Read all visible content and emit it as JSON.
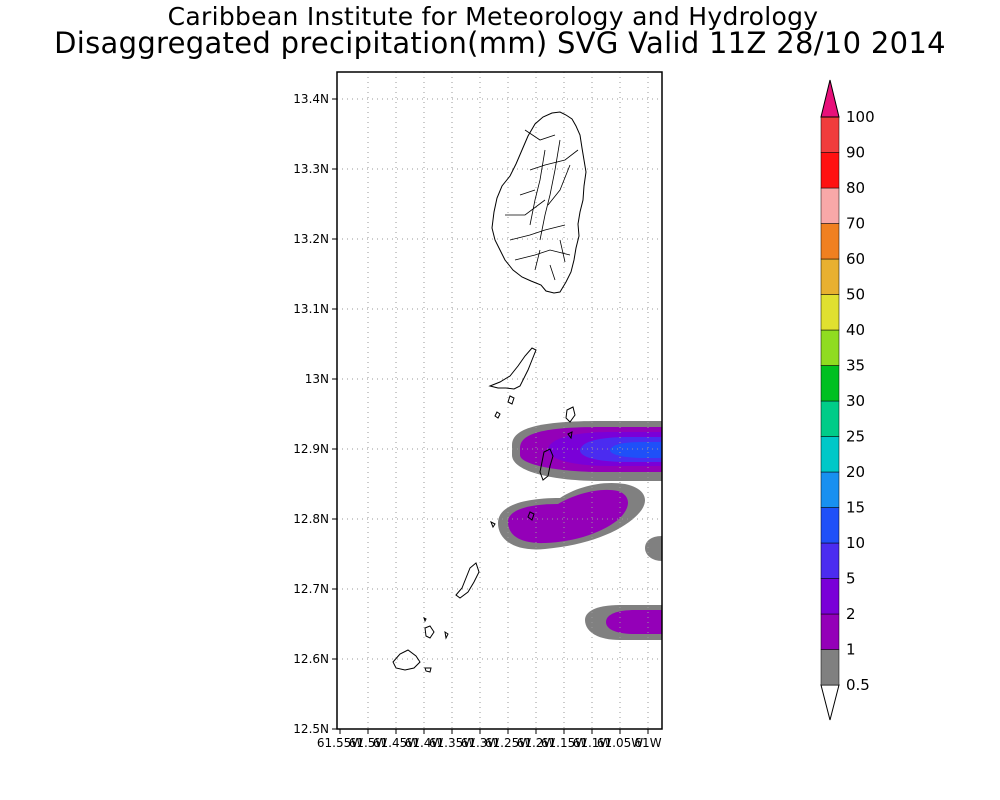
{
  "header": {
    "institute": "Caribbean Institute for Meteorology and Hydrology",
    "product": "Disaggregated precipitation(mm) SVG Valid 11Z 28/10 2014"
  },
  "map": {
    "lat_ticks": [
      "12.5N",
      "12.6N",
      "12.7N",
      "12.8N",
      "12.9N",
      "13N",
      "13.1N",
      "13.2N",
      "13.3N",
      "13.4N"
    ],
    "lon_ticks": [
      "61.55W",
      "61.5W",
      "61.45W",
      "61.4W",
      "61.35W",
      "61.3W",
      "61.25W",
      "61.2W",
      "61.15W",
      "61.1W",
      "61.05W",
      "61W"
    ],
    "lat_range": [
      12.5,
      13.44
    ],
    "lon_range": [
      -61.55,
      -60.98
    ],
    "grid": "dotted"
  },
  "colorbar": {
    "labels": [
      "0.5",
      "1",
      "2",
      "5",
      "10",
      "15",
      "20",
      "25",
      "30",
      "35",
      "40",
      "50",
      "60",
      "70",
      "80",
      "90",
      "100"
    ],
    "colors": [
      "#808080",
      "#9400b8",
      "#7a00d8",
      "#4b2cf0",
      "#1f50f8",
      "#1890f0",
      "#00c8c8",
      "#00cc88",
      "#00c020",
      "#90dc20",
      "#e0e030",
      "#e8b030",
      "#f08020",
      "#f8a8a8",
      "#ff1010",
      "#f03c3c",
      "#e8107a"
    ]
  },
  "precip_areas": [
    {
      "name": "band-north",
      "intensity": "2-10 mm"
    },
    {
      "name": "band-middle",
      "intensity": "1-2 mm"
    },
    {
      "name": "band-south",
      "intensity": "1-2 mm"
    }
  ]
}
